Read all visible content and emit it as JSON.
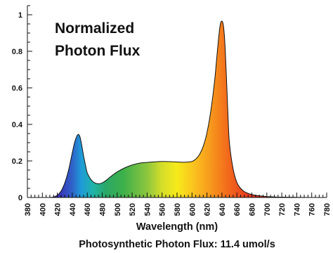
{
  "chart_data": {
    "type": "area",
    "title_lines": [
      "Normalized",
      "Photon Flux"
    ],
    "xlabel": "Wavelength (nm)",
    "ylabel": "",
    "footer": "Photosynthetic Photon Flux: 11.4 umol/s",
    "xlim": [
      380,
      780
    ],
    "ylim": [
      0,
      1.05
    ],
    "x_ticks": [
      380,
      400,
      420,
      440,
      460,
      480,
      500,
      520,
      540,
      560,
      580,
      600,
      620,
      640,
      660,
      680,
      700,
      720,
      740,
      760,
      780
    ],
    "y_ticks": [
      0,
      0.2,
      0.4,
      0.6,
      0.8,
      1
    ],
    "y_tick_labels": [
      "0",
      "0.2",
      "0.4",
      "0.6",
      "0.8",
      "1"
    ],
    "grid": false,
    "fill": "spectral-gradient",
    "x": [
      380,
      390,
      400,
      405,
      410,
      415,
      420,
      425,
      430,
      435,
      440,
      443,
      446,
      448,
      450,
      452,
      455,
      458,
      460,
      465,
      470,
      475,
      480,
      485,
      490,
      500,
      510,
      520,
      530,
      540,
      550,
      560,
      570,
      580,
      590,
      600,
      605,
      610,
      615,
      620,
      625,
      630,
      633,
      636,
      638,
      640,
      642,
      644,
      646,
      648,
      650,
      655,
      660,
      665,
      670,
      680,
      690,
      700,
      710,
      720,
      740,
      760,
      780
    ],
    "y": [
      0,
      0,
      0,
      0,
      0,
      0.003,
      0.012,
      0.035,
      0.08,
      0.15,
      0.245,
      0.3,
      0.335,
      0.345,
      0.335,
      0.3,
      0.23,
      0.17,
      0.135,
      0.098,
      0.08,
      0.075,
      0.08,
      0.093,
      0.11,
      0.14,
      0.162,
      0.178,
      0.188,
      0.192,
      0.195,
      0.197,
      0.196,
      0.194,
      0.193,
      0.197,
      0.21,
      0.235,
      0.28,
      0.355,
      0.47,
      0.63,
      0.76,
      0.89,
      0.95,
      0.965,
      0.94,
      0.84,
      0.66,
      0.46,
      0.3,
      0.155,
      0.082,
      0.05,
      0.032,
      0.016,
      0.009,
      0.005,
      0.003,
      0.002,
      0.001,
      0,
      0
    ]
  }
}
